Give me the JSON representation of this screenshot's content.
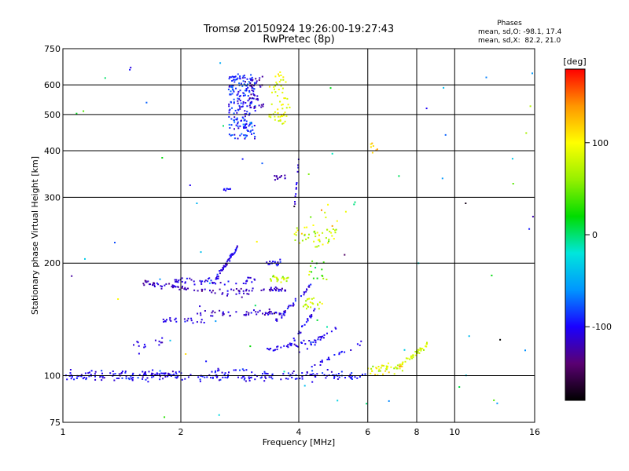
{
  "chart_data": {
    "type": "scatter",
    "title": "Tromsø 20150924 19:26:00-19:27:43",
    "subtitle": "RwPretec (8p)",
    "xlabel": "Frequency [MHz]",
    "ylabel": "Stationary phase Virtual Height [km]",
    "xscale": "log",
    "yscale": "log",
    "xlim": [
      1,
      16
    ],
    "ylim": [
      75,
      750
    ],
    "xticks": [
      1,
      2,
      4,
      6,
      8,
      10,
      16
    ],
    "xtick_labels": [
      "1",
      "2",
      "4",
      "6",
      "8",
      "10",
      "16"
    ],
    "xgrid": [
      2,
      4,
      6,
      8,
      10
    ],
    "yticks": [
      75,
      100,
      200,
      300,
      400,
      500,
      600,
      750
    ],
    "ytick_labels": [
      "75",
      "100",
      "200",
      "300",
      "400",
      "500",
      "600",
      "750"
    ],
    "ygrid": [
      100,
      200,
      300,
      400,
      500,
      600
    ],
    "grid": true,
    "legend": {
      "title": "Phases",
      "line1": "mean, sd,O: -98.1, 17.4",
      "line2": "mean, sd,X:  82.2, 21.0",
      "placement": "top-right"
    },
    "colorbar": {
      "label": "[deg]",
      "range": [
        -180,
        180
      ],
      "ticks": [
        100,
        0,
        -100
      ],
      "tick_labels": [
        "100",
        "0",
        "-100"
      ],
      "colors": [
        "#000000",
        "#5a0072",
        "#1a00ff",
        "#0096ff",
        "#00e6dc",
        "#00dc00",
        "#96f000",
        "#ffff00",
        "#ff9600",
        "#ff0000"
      ]
    },
    "clusters": [
      {
        "shape": "hline",
        "x": [
          1.0,
          6.0
        ],
        "y": 100,
        "dy": 2.5,
        "n": 240,
        "phase": -100,
        "phase_sd": 14
      },
      {
        "shape": "hline",
        "x": [
          1.6,
          2.0
        ],
        "y": 101,
        "dy": 2,
        "n": 25,
        "phase": -110,
        "phase_sd": 10
      },
      {
        "shape": "hline",
        "x": [
          6.0,
          7.4
        ],
        "y": 104,
        "dy": 3,
        "n": 40,
        "phase": 95,
        "phase_sd": 35
      },
      {
        "shape": "curve",
        "x": [
          7.0,
          8.6
        ],
        "y": [
          104,
          122
        ],
        "n": 45,
        "phase": 85,
        "phase_sd": 15
      },
      {
        "shape": "curve",
        "x": [
          4.3,
          5.8
        ],
        "y": [
          105,
          123
        ],
        "n": 20,
        "phase": -100,
        "phase_sd": 10
      },
      {
        "shape": "hline",
        "x": [
          1.5,
          1.8
        ],
        "y": 120,
        "dy": 3,
        "n": 14,
        "phase": -110,
        "phase_sd": 10
      },
      {
        "shape": "curve",
        "x": [
          1.6,
          2.6
        ],
        "y": [
          177,
          167
        ],
        "n": 55,
        "phase": -120,
        "phase_sd": 12
      },
      {
        "shape": "hline",
        "x": [
          2.6,
          3.0
        ],
        "y": 167,
        "dy": 3,
        "n": 20,
        "phase": -115,
        "phase_sd": 12
      },
      {
        "shape": "hline",
        "x": [
          1.9,
          3.2
        ],
        "y": 180,
        "dy": 3,
        "n": 45,
        "phase": -105,
        "phase_sd": 12
      },
      {
        "shape": "curve",
        "x": [
          2.4,
          2.8
        ],
        "y": [
          175,
          222
        ],
        "n": 55,
        "phase": -105,
        "phase_sd": 15
      },
      {
        "shape": "hline",
        "x": [
          1.8,
          2.3
        ],
        "y": 140,
        "dy": 2,
        "n": 22,
        "phase": -110,
        "phase_sd": 10
      },
      {
        "shape": "hline",
        "x": [
          2.2,
          3.6
        ],
        "y": 147,
        "dy": 2,
        "n": 50,
        "phase": -115,
        "phase_sd": 12
      },
      {
        "shape": "hline",
        "x": [
          3.0,
          3.7
        ],
        "y": 170,
        "dy": 2,
        "n": 25,
        "phase": -115,
        "phase_sd": 12
      },
      {
        "shape": "curve",
        "x": [
          3.5,
          4.3
        ],
        "y": [
          140,
          175
        ],
        "n": 35,
        "phase": -105,
        "phase_sd": 15
      },
      {
        "shape": "hline",
        "x": [
          3.3,
          3.8
        ],
        "y": 182,
        "dy": 3,
        "n": 22,
        "phase": 75,
        "phase_sd": 25
      },
      {
        "shape": "hline",
        "x": [
          3.3,
          3.6
        ],
        "y": 200,
        "dy": 3,
        "n": 15,
        "phase": -100,
        "phase_sd": 12
      },
      {
        "shape": "curve",
        "x": [
          3.8,
          4.4
        ],
        "y": [
          120,
          150
        ],
        "n": 25,
        "phase": -100,
        "phase_sd": 12
      },
      {
        "shape": "curve",
        "x": [
          3.3,
          4.6
        ],
        "y": [
          117,
          125
        ],
        "n": 30,
        "phase": -105,
        "phase_sd": 12
      },
      {
        "shape": "curve",
        "x": [
          4.0,
          5.0
        ],
        "y": [
          115,
          135
        ],
        "n": 20,
        "phase": -100,
        "phase_sd": 12
      },
      {
        "shape": "cloud",
        "x": [
          3.9,
          5.0
        ],
        "y": [
          220,
          250
        ],
        "n": 45,
        "phase": 80,
        "phase_sd": 30
      },
      {
        "shape": "cloud",
        "x": [
          4.1,
          4.6
        ],
        "y": [
          150,
          165
        ],
        "n": 22,
        "phase": 80,
        "phase_sd": 20
      },
      {
        "shape": "cloud",
        "x": [
          4.2,
          4.8
        ],
        "y": [
          180,
          205
        ],
        "n": 15,
        "phase": 50,
        "phase_sd": 40
      },
      {
        "shape": "cloud",
        "x": [
          2.65,
          3.1
        ],
        "y": [
          430,
          640
        ],
        "n": 200,
        "phase": -90,
        "phase_sd": 20
      },
      {
        "shape": "cloud",
        "x": [
          3.0,
          3.25
        ],
        "y": [
          520,
          640
        ],
        "n": 35,
        "phase": -120,
        "phase_sd": 15
      },
      {
        "shape": "cloud",
        "x": [
          3.35,
          3.8
        ],
        "y": [
          470,
          650
        ],
        "n": 60,
        "phase": 90,
        "phase_sd": 15
      },
      {
        "shape": "hline",
        "x": [
          3.4,
          3.7
        ],
        "y": 340,
        "dy": 5,
        "n": 12,
        "phase": -120,
        "phase_sd": 10
      },
      {
        "shape": "hline",
        "x": [
          2.5,
          2.7
        ],
        "y": 315,
        "dy": 5,
        "n": 8,
        "phase": -100,
        "phase_sd": 10
      },
      {
        "shape": "curve",
        "x": [
          3.9,
          4.0
        ],
        "y": [
          280,
          380
        ],
        "n": 12,
        "phase": -100,
        "phase_sd": 15
      },
      {
        "shape": "cloud",
        "x": [
          6.1,
          6.4
        ],
        "y": [
          395,
          425
        ],
        "n": 7,
        "phase": 120,
        "phase_sd": 20
      },
      {
        "shape": "cloud",
        "x": [
          4.2,
          5.6
        ],
        "y": [
          250,
          290
        ],
        "n": 10,
        "phase": 80,
        "phase_sd": 40
      },
      {
        "shape": "cloud",
        "x": [
          1.0,
          16.0
        ],
        "y": [
          75,
          700
        ],
        "n": 70,
        "phase": -40,
        "phase_sd": 90
      }
    ]
  }
}
